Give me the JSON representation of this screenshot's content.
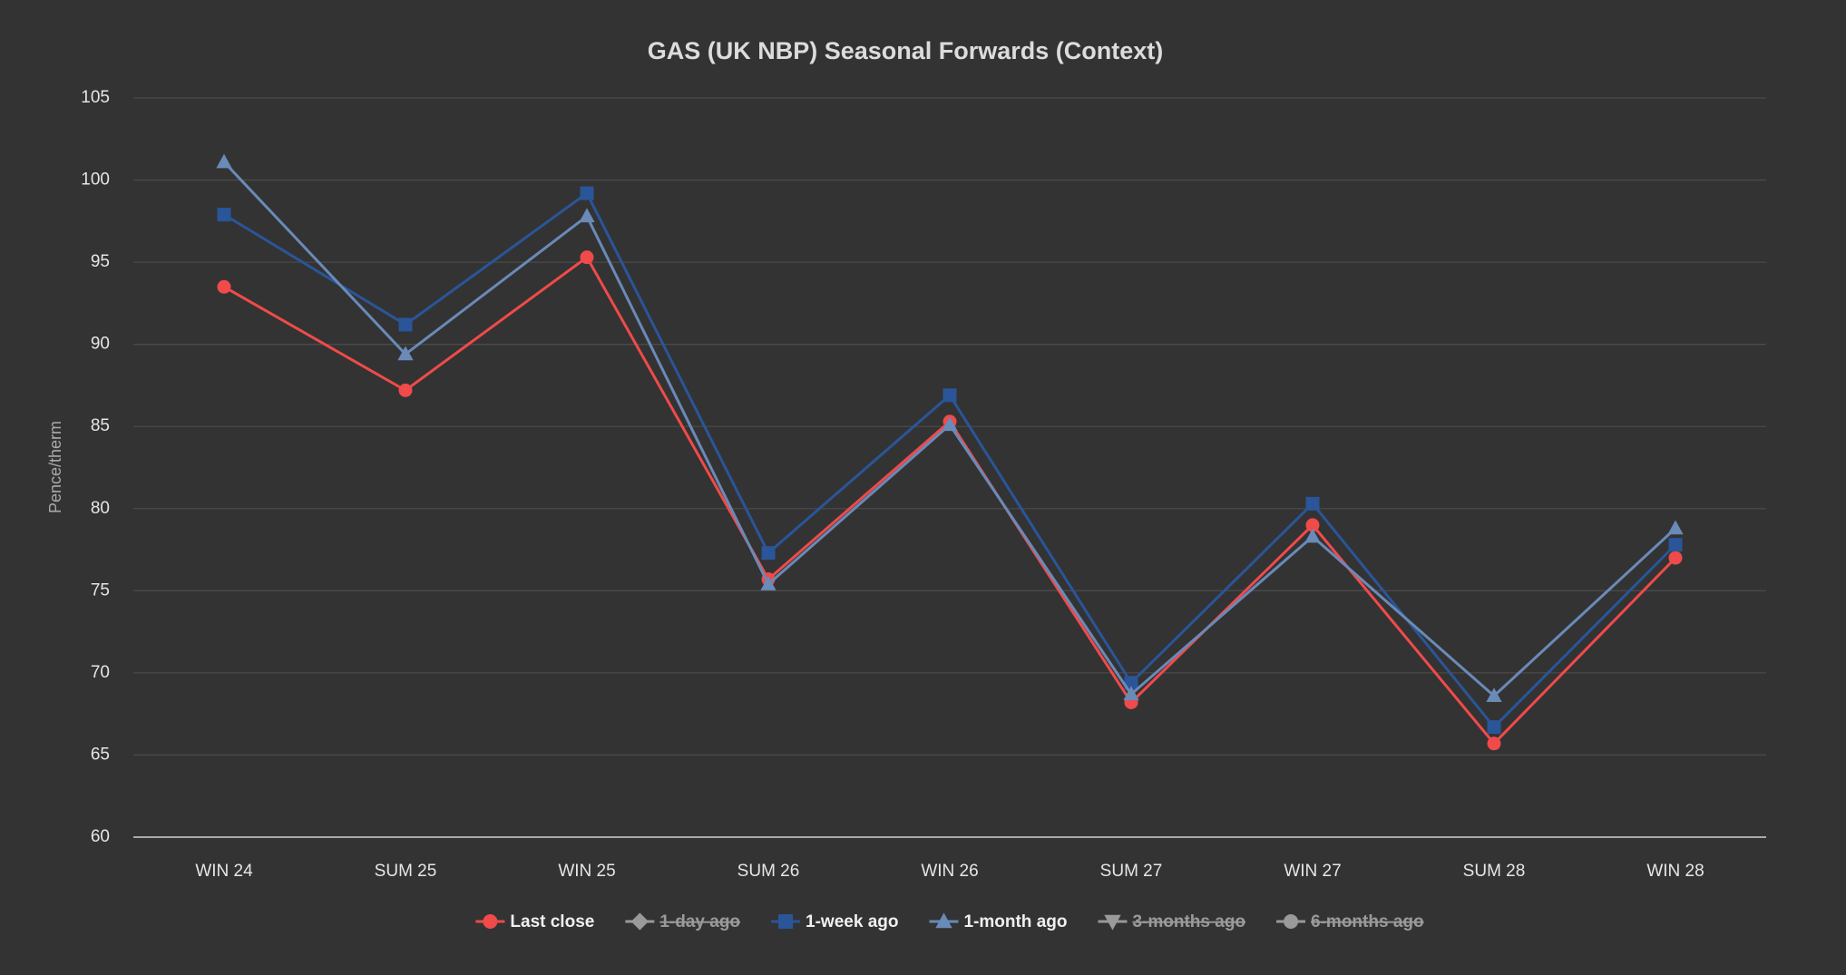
{
  "chart_data": {
    "type": "line",
    "title": "GAS (UK NBP) Seasonal Forwards (Context)",
    "y_label": "Pence/therm",
    "categories": [
      "WIN 24",
      "SUM 25",
      "WIN 25",
      "SUM 26",
      "WIN 26",
      "SUM 27",
      "WIN 27",
      "SUM 28",
      "WIN 28"
    ],
    "ylim": [
      60,
      105
    ],
    "yticks": [
      60,
      65,
      70,
      75,
      80,
      85,
      90,
      95,
      100,
      105
    ],
    "grid": true,
    "legend": "bottom",
    "series": [
      {
        "name": "Last close",
        "color": "#f04a4a",
        "marker": "circle",
        "visible": true,
        "values": [
          93.5,
          87.2,
          95.3,
          75.7,
          85.3,
          68.2,
          79.0,
          65.7,
          77.0
        ]
      },
      {
        "name": "1-day ago",
        "color": "#9a9a9a",
        "marker": "diamond",
        "visible": false,
        "values": [
          null,
          null,
          null,
          null,
          null,
          null,
          null,
          null,
          null
        ]
      },
      {
        "name": "1-week ago",
        "color": "#2a5599",
        "marker": "square",
        "visible": true,
        "values": [
          97.9,
          91.2,
          99.2,
          77.3,
          86.9,
          69.4,
          80.3,
          66.7,
          77.8
        ]
      },
      {
        "name": "1-month ago",
        "color": "#6a8ab8",
        "marker": "triangle",
        "visible": true,
        "values": [
          101.1,
          89.4,
          97.8,
          75.4,
          85.1,
          68.7,
          78.3,
          68.6,
          78.8
        ]
      },
      {
        "name": "3-months ago",
        "color": "#9a9a9a",
        "marker": "triangle-down",
        "visible": false,
        "values": [
          null,
          null,
          null,
          null,
          null,
          null,
          null,
          null,
          null
        ]
      },
      {
        "name": "6-months ago",
        "color": "#9a9a9a",
        "marker": "circle",
        "visible": false,
        "values": [
          null,
          null,
          null,
          null,
          null,
          null,
          null,
          null,
          null
        ]
      }
    ]
  }
}
